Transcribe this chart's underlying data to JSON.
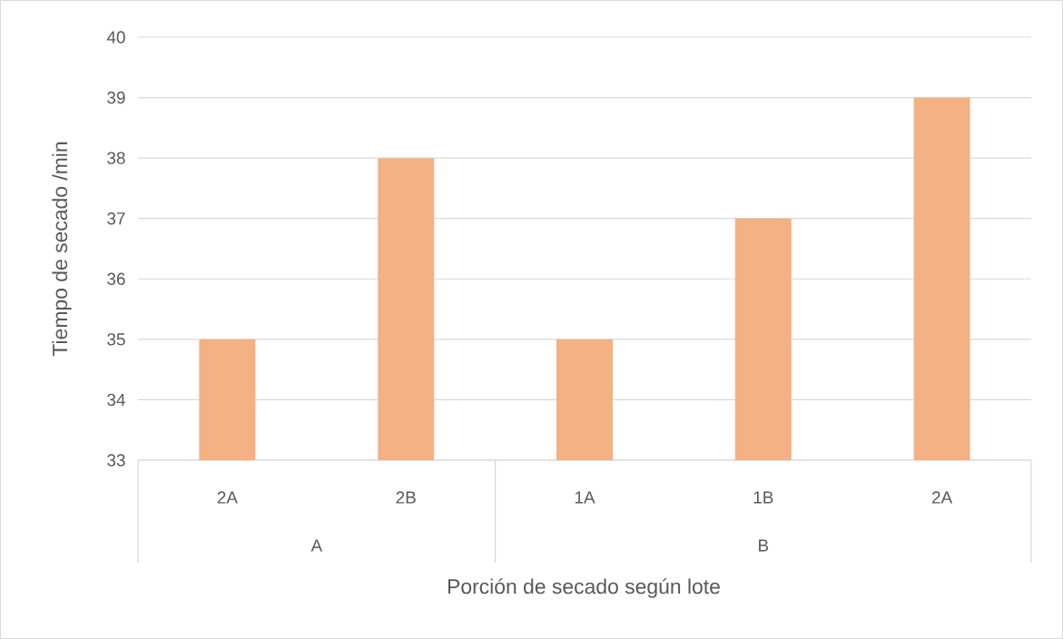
{
  "chart_data": {
    "type": "bar",
    "xlabel": "Porción de secado según lote",
    "ylabel": "Tiempo de secado /min",
    "categories": [
      "2A",
      "2B",
      "1A",
      "1B",
      "2A"
    ],
    "values": [
      35,
      38,
      35,
      37,
      39
    ],
    "color": "#f4b183",
    "ylim": [
      33,
      40
    ],
    "yticks": [
      33,
      34,
      35,
      36,
      37,
      38,
      39,
      40
    ],
    "grid": "y",
    "annotations": [
      "A",
      "B"
    ]
  }
}
